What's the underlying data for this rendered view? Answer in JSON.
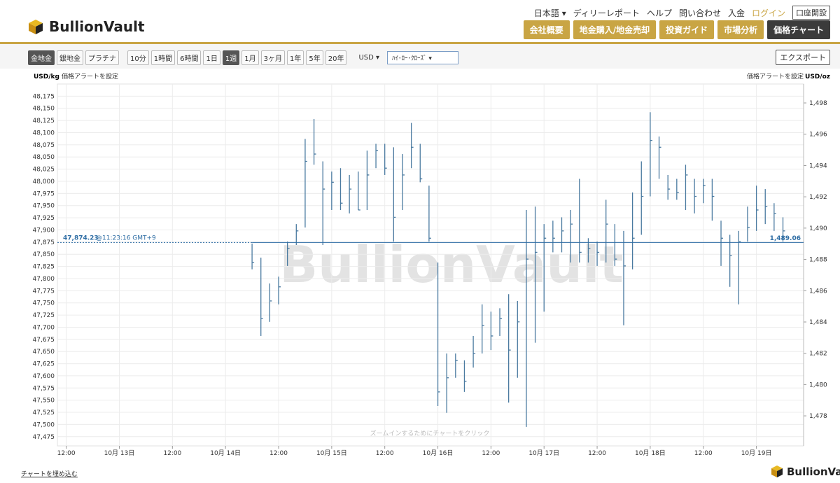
{
  "header": {
    "logo": "BullionVault",
    "nav": [
      "日本語 ▾",
      "ディリーレポート",
      "ヘルプ",
      "問い合わせ",
      "入金",
      "ログイン",
      "口座開設"
    ],
    "tabs": [
      "会社概要",
      "地金購入/地金売却",
      "投資ガイド",
      "市場分析",
      "価格チャート"
    ]
  },
  "toolbar": {
    "metals": [
      "金地金",
      "銀地金",
      "プラチナ"
    ],
    "periods": [
      "10分",
      "1時間",
      "6時間",
      "1日",
      "1週",
      "1月",
      "3ヶ月",
      "1年",
      "5年",
      "20年"
    ],
    "currency": "USD ▾",
    "chart_style": "ﾊｲ･ﾛｰ･ｸﾛｰｽﾞ ▾",
    "export": "エクスポート"
  },
  "chart_data": {
    "type": "hlc",
    "color": "#4a7aa0",
    "grid": true,
    "ylabel": "USD/kg",
    "y2label": "USD/oz",
    "alerts": [
      "価格アラートを設定",
      "価格アラートを設定"
    ],
    "watermark": "BullionVault",
    "hint": "ズームインするためにチャートをクリック",
    "xlim": [
      "10-12 10:00",
      "10-19 10:40"
    ],
    "xticks": [
      {
        "value": "10-12 12:00",
        "label": "12:00"
      },
      {
        "value": "10-13 00:00",
        "label": "10月 13日"
      },
      {
        "value": "10-13 12:00",
        "label": "12:00"
      },
      {
        "value": "10-14 00:00",
        "label": "10月 14日"
      },
      {
        "value": "10-14 12:00",
        "label": "12:00"
      },
      {
        "value": "10-15 00:00",
        "label": "10月 15日"
      },
      {
        "value": "10-15 12:00",
        "label": "12:00"
      },
      {
        "value": "10-16 00:00",
        "label": "10月 16日"
      },
      {
        "value": "10-16 12:00",
        "label": "12:00"
      },
      {
        "value": "10-17 00:00",
        "label": "10月 17日"
      },
      {
        "value": "10-17 12:00",
        "label": "12:00"
      },
      {
        "value": "10-18 00:00",
        "label": "10月 18日"
      },
      {
        "value": "10-18 12:00",
        "label": "12:00"
      },
      {
        "value": "10-19 00:00",
        "label": "10月 19日"
      }
    ],
    "ylim": [
      47456,
      48200
    ],
    "yticks": [
      {
        "value": 47475,
        "label": "47,475"
      },
      {
        "value": 47500,
        "label": "47,500"
      },
      {
        "value": 47525,
        "label": "47,525"
      },
      {
        "value": 47550,
        "label": "47,550"
      },
      {
        "value": 47575,
        "label": "47,575"
      },
      {
        "value": 47600,
        "label": "47,600"
      },
      {
        "value": 47625,
        "label": "47,625"
      },
      {
        "value": 47650,
        "label": "47,650"
      },
      {
        "value": 47675,
        "label": "47,675"
      },
      {
        "value": 47700,
        "label": "47,700"
      },
      {
        "value": 47725,
        "label": "47,725"
      },
      {
        "value": 47750,
        "label": "47,750"
      },
      {
        "value": 47775,
        "label": "47,775"
      },
      {
        "value": 47800,
        "label": "47,800"
      },
      {
        "value": 47825,
        "label": "47,825"
      },
      {
        "value": 47850,
        "label": "47,850"
      },
      {
        "value": 47875,
        "label": "47,875"
      },
      {
        "value": 47900,
        "label": "47,900"
      },
      {
        "value": 47925,
        "label": "47,925"
      },
      {
        "value": 47950,
        "label": "47,950"
      },
      {
        "value": 47975,
        "label": "47,975"
      },
      {
        "value": 48000,
        "label": "48,000"
      },
      {
        "value": 48025,
        "label": "48,025"
      },
      {
        "value": 48050,
        "label": "48,050"
      },
      {
        "value": 48075,
        "label": "48,075"
      },
      {
        "value": 48100,
        "label": "48,100"
      },
      {
        "value": 48125,
        "label": "48,125"
      },
      {
        "value": 48150,
        "label": "48,150"
      },
      {
        "value": 48175,
        "label": "48,175"
      }
    ],
    "y2lim": [
      1476.08,
      1499.21
    ],
    "y2ticks": [
      {
        "value": 1478,
        "label": "1,478"
      },
      {
        "value": 1480,
        "label": "1,480"
      },
      {
        "value": 1482,
        "label": "1,482"
      },
      {
        "value": 1484,
        "label": "1,484"
      },
      {
        "value": 1486,
        "label": "1,486"
      },
      {
        "value": 1488,
        "label": "1,488"
      },
      {
        "value": 1490,
        "label": "1,490"
      },
      {
        "value": 1492,
        "label": "1,492"
      },
      {
        "value": 1494,
        "label": "1,494"
      },
      {
        "value": 1496,
        "label": "1,496"
      },
      {
        "value": 1498,
        "label": "1,498"
      }
    ],
    "current_price": {
      "value": 47874.23,
      "label": "47,874.23",
      "time": "@11:23:16 GMT+9"
    },
    "current_price_oz": {
      "value": 1489.06,
      "label": "1,489.06"
    },
    "x": [
      "10-14 06:00",
      "10-14 08:00",
      "10-14 10:00",
      "10-14 12:00",
      "10-14 14:00",
      "10-14 16:00",
      "10-14 18:00",
      "10-14 20:00",
      "10-14 22:00",
      "10-15 00:00",
      "10-15 02:00",
      "10-15 04:00",
      "10-15 06:00",
      "10-15 08:00",
      "10-15 10:00",
      "10-15 12:00",
      "10-15 14:00",
      "10-15 16:00",
      "10-15 18:00",
      "10-15 20:00",
      "10-15 22:00",
      "10-16 00:00",
      "10-16 02:00",
      "10-16 04:00",
      "10-16 06:00",
      "10-16 08:00",
      "10-16 10:00",
      "10-16 12:00",
      "10-16 14:00",
      "10-16 16:00",
      "10-16 18:00",
      "10-16 20:00",
      "10-16 22:00",
      "10-17 00:00",
      "10-17 02:00",
      "10-17 04:00",
      "10-17 06:00",
      "10-17 08:00",
      "10-17 10:00",
      "10-17 12:00",
      "10-17 14:00",
      "10-17 16:00",
      "10-17 18:00",
      "10-17 20:00",
      "10-17 22:00",
      "10-18 00:00",
      "10-18 02:00",
      "10-18 04:00",
      "10-18 06:00",
      "10-18 08:00",
      "10-18 10:00",
      "10-18 12:00",
      "10-18 14:00",
      "10-18 16:00",
      "10-18 18:00",
      "10-18 20:00",
      "10-18 22:00",
      "10-19 00:00",
      "10-19 02:00",
      "10-19 04:00",
      "10-19 06:00"
    ],
    "high": [
      47872,
      47843,
      47790,
      47804,
      47876,
      47912,
      48087,
      48128,
      48041,
      48020,
      48027,
      48013,
      48020,
      48063,
      48077,
      48077,
      48070,
      48056,
      48120,
      48077,
      47991,
      47833,
      47646,
      47646,
      47632,
      47682,
      47747,
      47732,
      47739,
      47768,
      47754,
      47941,
      47948,
      47912,
      47919,
      47926,
      47941,
      48005,
      47883,
      47876,
      47962,
      47912,
      47898,
      47977,
      48041,
      48142,
      48092,
      48013,
      48005,
      48034,
      48005,
      48005,
      48005,
      47919,
      47890,
      47898,
      47948,
      47991,
      47984,
      47955,
      47926
    ],
    "low": [
      47819,
      47682,
      47711,
      47747,
      47826,
      47869,
      47905,
      48034,
      47869,
      47941,
      47941,
      47934,
      47941,
      47941,
      48027,
      48013,
      47876,
      47941,
      48027,
      47998,
      47876,
      47538,
      47524,
      47596,
      47567,
      47617,
      47646,
      47653,
      47682,
      47545,
      47596,
      47495,
      47668,
      47732,
      47854,
      47854,
      47833,
      47833,
      47833,
      47826,
      47833,
      47826,
      47704,
      47819,
      47890,
      47969,
      48005,
      47962,
      47962,
      47941,
      47934,
      47955,
      47919,
      47826,
      47783,
      47747,
      47876,
      47898,
      47912,
      47898,
      47876
    ],
    "close": [
      47833,
      47718,
      47754,
      47783,
      47862,
      47898,
      48041,
      48056,
      47984,
      47998,
      47955,
      47984,
      47941,
      48013,
      48063,
      48027,
      47926,
      48013,
      48070,
      48005,
      47883,
      47567,
      47596,
      47632,
      47589,
      47646,
      47704,
      47682,
      47718,
      47653,
      47711,
      47840,
      47854,
      47883,
      47883,
      47898,
      47912,
      47854,
      47862,
      47854,
      47912,
      47840,
      47826,
      47883,
      47969,
      48084,
      48070,
      47984,
      47977,
      48013,
      47969,
      47991,
      47969,
      47883,
      47847,
      47876,
      47905,
      47941,
      47948,
      47934,
      47898
    ]
  },
  "footer": {
    "embed": "チャートを埋め込む",
    "logo": "BullionVault"
  }
}
